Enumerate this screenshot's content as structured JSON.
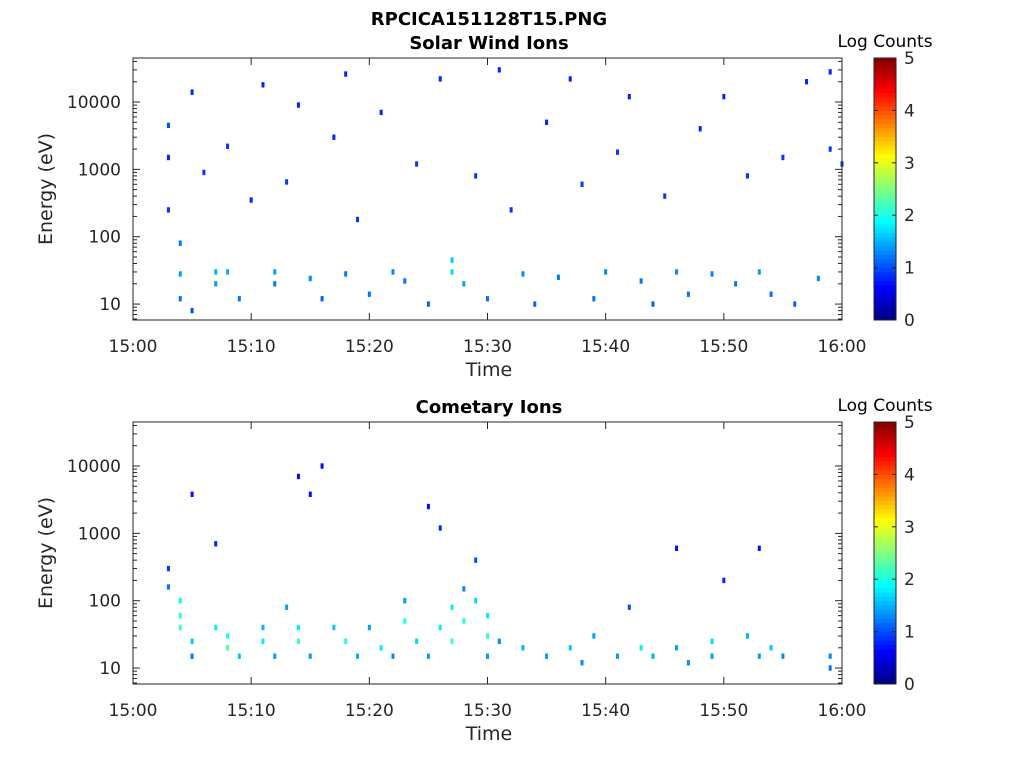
{
  "figure_title": "RPCICA151128T15.PNG",
  "chart_data": [
    {
      "type": "heatmap",
      "title": "Solar Wind Ions",
      "xlabel": "Time",
      "ylabel": "Energy (eV)",
      "x_ticks": [
        "15:00",
        "15:10",
        "15:20",
        "15:30",
        "15:40",
        "15:50",
        "16:00"
      ],
      "x_range": [
        "15:00",
        "16:00"
      ],
      "y_scale": "log",
      "y_ticks": [
        "10",
        "100",
        "1000",
        "10000"
      ],
      "y_range": [
        5.8,
        45000
      ],
      "colorbar": {
        "label": "Log Counts",
        "range": [
          0,
          5
        ],
        "ticks": [
          "0",
          "1",
          "2",
          "3",
          "4",
          "5"
        ],
        "colormap": "jet"
      },
      "cells": [
        [
          "15:03",
          4500,
          1.0
        ],
        [
          "15:03",
          1500,
          0.8
        ],
        [
          "15:03",
          250,
          0.9
        ],
        [
          "15:04",
          80,
          1.2
        ],
        [
          "15:04",
          28,
          1.4
        ],
        [
          "15:04",
          12,
          1.2
        ],
        [
          "15:05",
          8,
          1.0
        ],
        [
          "15:05",
          14000,
          0.8
        ],
        [
          "15:06",
          900,
          0.9
        ],
        [
          "15:07",
          30,
          1.5
        ],
        [
          "15:07",
          20,
          1.4
        ],
        [
          "15:08",
          30,
          1.5
        ],
        [
          "15:08",
          2200,
          0.9
        ],
        [
          "15:09",
          12,
          1.2
        ],
        [
          "15:10",
          350,
          0.8
        ],
        [
          "15:11",
          18000,
          0.8
        ],
        [
          "15:12",
          30,
          1.4
        ],
        [
          "15:12",
          20,
          1.2
        ],
        [
          "15:13",
          650,
          0.9
        ],
        [
          "15:14",
          9000,
          0.8
        ],
        [
          "15:15",
          24,
          1.3
        ],
        [
          "15:16",
          12,
          1.1
        ],
        [
          "15:17",
          3000,
          0.8
        ],
        [
          "15:18",
          28,
          1.2
        ],
        [
          "15:18",
          26000,
          0.8
        ],
        [
          "15:19",
          180,
          0.9
        ],
        [
          "15:20",
          14,
          1.2
        ],
        [
          "15:21",
          7000,
          0.8
        ],
        [
          "15:22",
          30,
          1.3
        ],
        [
          "15:23",
          22,
          1.2
        ],
        [
          "15:24",
          1200,
          0.9
        ],
        [
          "15:25",
          10,
          1.1
        ],
        [
          "15:26",
          22000,
          0.8
        ],
        [
          "15:27",
          45,
          1.6
        ],
        [
          "15:27",
          30,
          1.7
        ],
        [
          "15:28",
          20,
          1.4
        ],
        [
          "15:29",
          800,
          0.9
        ],
        [
          "15:30",
          12,
          1.2
        ],
        [
          "15:31",
          30000,
          0.8
        ],
        [
          "15:32",
          250,
          0.9
        ],
        [
          "15:33",
          28,
          1.3
        ],
        [
          "15:34",
          10,
          1.1
        ],
        [
          "15:35",
          5000,
          0.8
        ],
        [
          "15:36",
          25,
          1.2
        ],
        [
          "15:37",
          22000,
          0.8
        ],
        [
          "15:38",
          600,
          0.9
        ],
        [
          "15:39",
          12,
          1.2
        ],
        [
          "15:40",
          30,
          1.3
        ],
        [
          "15:41",
          1800,
          0.9
        ],
        [
          "15:42",
          12000,
          0.8
        ],
        [
          "15:43",
          22,
          1.2
        ],
        [
          "15:44",
          10,
          1.1
        ],
        [
          "15:45",
          400,
          0.9
        ],
        [
          "15:46",
          30,
          1.3
        ],
        [
          "15:47",
          14,
          1.2
        ],
        [
          "15:48",
          4000,
          0.8
        ],
        [
          "15:49",
          28,
          1.3
        ],
        [
          "15:50",
          12000,
          0.8
        ],
        [
          "15:51",
          20,
          1.2
        ],
        [
          "15:52",
          800,
          0.9
        ],
        [
          "15:53",
          30,
          1.4
        ],
        [
          "15:54",
          14,
          1.2
        ],
        [
          "15:55",
          1500,
          0.9
        ],
        [
          "15:56",
          10,
          1.1
        ],
        [
          "15:57",
          20000,
          0.8
        ],
        [
          "15:58",
          24,
          1.3
        ],
        [
          "15:59",
          2000,
          0.9
        ],
        [
          "15:59",
          28000,
          0.8
        ],
        [
          "16:00",
          1200,
          0.9
        ]
      ]
    },
    {
      "type": "heatmap",
      "title": "Cometary Ions",
      "xlabel": "Time",
      "ylabel": "Energy (eV)",
      "x_ticks": [
        "15:00",
        "15:10",
        "15:20",
        "15:30",
        "15:40",
        "15:50",
        "16:00"
      ],
      "x_range": [
        "15:00",
        "16:00"
      ],
      "y_scale": "log",
      "y_ticks": [
        "10",
        "100",
        "1000",
        "10000"
      ],
      "y_range": [
        5.8,
        45000
      ],
      "colorbar": {
        "label": "Log Counts",
        "range": [
          0,
          5
        ],
        "ticks": [
          "0",
          "1",
          "2",
          "3",
          "4",
          "5"
        ],
        "colormap": "jet"
      },
      "cells": [
        [
          "15:03",
          300,
          0.9
        ],
        [
          "15:03",
          160,
          1.2
        ],
        [
          "15:04",
          100,
          1.9
        ],
        [
          "15:04",
          60,
          2.1
        ],
        [
          "15:04",
          40,
          2.2
        ],
        [
          "15:05",
          25,
          1.6
        ],
        [
          "15:05",
          15,
          1.2
        ],
        [
          "15:05",
          3800,
          0.7
        ],
        [
          "15:07",
          40,
          1.8
        ],
        [
          "15:07",
          700,
          0.8
        ],
        [
          "15:08",
          30,
          2.0
        ],
        [
          "15:08",
          20,
          2.3
        ],
        [
          "15:09",
          15,
          1.6
        ],
        [
          "15:11",
          40,
          1.5
        ],
        [
          "15:11",
          25,
          1.8
        ],
        [
          "15:12",
          15,
          1.4
        ],
        [
          "15:13",
          80,
          1.4
        ],
        [
          "15:14",
          40,
          1.8
        ],
        [
          "15:14",
          25,
          2.1
        ],
        [
          "15:14",
          7000,
          0.7
        ],
        [
          "15:15",
          3800,
          0.7
        ],
        [
          "15:15",
          15,
          1.4
        ],
        [
          "15:16",
          10000,
          0.7
        ],
        [
          "15:17",
          40,
          1.6
        ],
        [
          "15:18",
          25,
          2.0
        ],
        [
          "15:19",
          15,
          1.5
        ],
        [
          "15:20",
          40,
          1.4
        ],
        [
          "15:21",
          20,
          1.8
        ],
        [
          "15:22",
          15,
          1.3
        ],
        [
          "15:23",
          100,
          1.4
        ],
        [
          "15:23",
          50,
          2.0
        ],
        [
          "15:24",
          25,
          1.7
        ],
        [
          "15:25",
          2500,
          0.7
        ],
        [
          "15:25",
          15,
          1.4
        ],
        [
          "15:26",
          40,
          1.8
        ],
        [
          "15:26",
          1200,
          0.8
        ],
        [
          "15:27",
          25,
          2.2
        ],
        [
          "15:27",
          80,
          1.8
        ],
        [
          "15:28",
          50,
          2.0
        ],
        [
          "15:28",
          150,
          1.3
        ],
        [
          "15:29",
          100,
          1.7
        ],
        [
          "15:29",
          400,
          1.0
        ],
        [
          "15:30",
          60,
          1.8
        ],
        [
          "15:30",
          30,
          2.1
        ],
        [
          "15:30",
          15,
          1.4
        ],
        [
          "15:31",
          25,
          1.3
        ],
        [
          "15:33",
          20,
          1.5
        ],
        [
          "15:35",
          15,
          1.4
        ],
        [
          "15:37",
          20,
          1.6
        ],
        [
          "15:38",
          12,
          1.3
        ],
        [
          "15:39",
          30,
          1.4
        ],
        [
          "15:41",
          15,
          1.4
        ],
        [
          "15:42",
          80,
          1.0
        ],
        [
          "15:43",
          20,
          1.8
        ],
        [
          "15:44",
          15,
          1.5
        ],
        [
          "15:46",
          20,
          1.4
        ],
        [
          "15:47",
          12,
          1.3
        ],
        [
          "15:46",
          600,
          0.7
        ],
        [
          "15:49",
          25,
          1.7
        ],
        [
          "15:49",
          15,
          1.4
        ],
        [
          "15:50",
          200,
          0.8
        ],
        [
          "15:52",
          30,
          1.5
        ],
        [
          "15:53",
          15,
          1.4
        ],
        [
          "15:53",
          600,
          0.7
        ],
        [
          "15:54",
          20,
          1.6
        ],
        [
          "15:55",
          15,
          1.3
        ],
        [
          "15:59",
          15,
          1.3
        ],
        [
          "15:59",
          10,
          1.2
        ]
      ]
    }
  ]
}
